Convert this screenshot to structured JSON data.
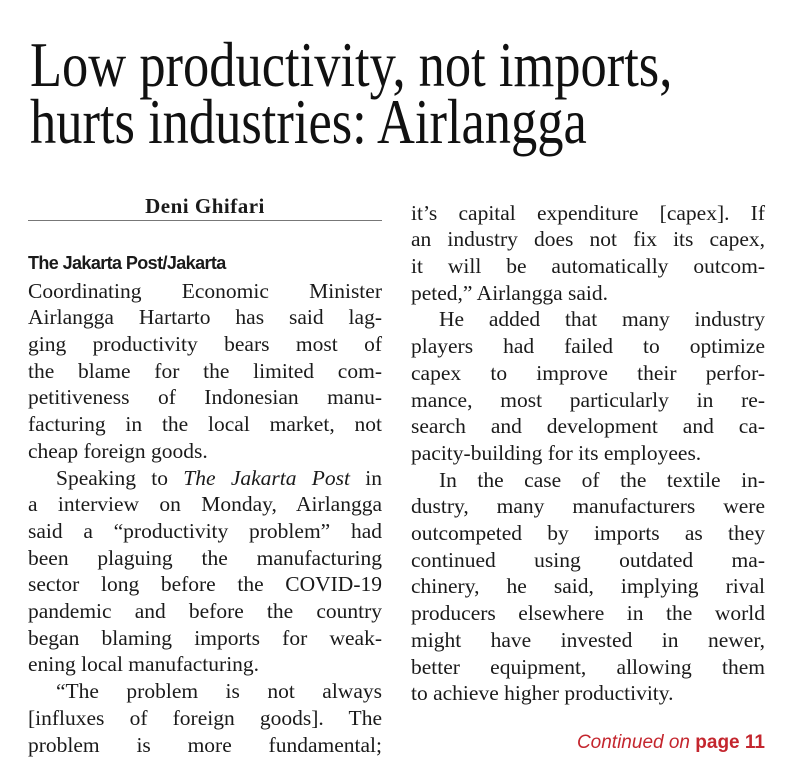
{
  "headline": [
    "Low productivity, not imports,",
    "hurts industries: Airlangga"
  ],
  "byline": "Deni Ghifari",
  "dateline": "The Jakarta Post/Jakarta",
  "columns": [
    {
      "paragraphs": [
        [
          "Coordinating Economic Minister",
          "Airlangga Hartarto has said lag-",
          "ging productivity bears most of",
          "the blame for the limited com-",
          "petitiveness of Indonesian manu-",
          "facturing in the local market, not",
          "cheap foreign goods."
        ],
        [
          [
            "Speaking to ",
            "The Jakarta Post",
            " in"
          ],
          "a interview on Monday, Airlangga",
          "said a “productivity problem” had",
          "been plaguing the manufacturing",
          "sector long before the COVID-19",
          "pandemic and before the country",
          "began blaming imports for weak-",
          "ening local manufacturing."
        ],
        [
          "“The problem is not always",
          "[influxes of foreign goods]. The",
          "problem is more fundamental;"
        ]
      ]
    },
    {
      "paragraphs": [
        [
          "it’s capital expenditure [capex]. If",
          "an industry does not fix its capex,",
          "it will be automatically outcom-",
          "peted,” Airlangga said."
        ],
        [
          "He added that many industry",
          "players had failed to optimize",
          "capex to improve their perfor-",
          "mance, most particularly in re-",
          "search and development and ca-",
          "pacity-building for its employees."
        ],
        [
          "In the case of the textile in-",
          "dustry, many manufacturers were",
          "outcompeted by imports as they",
          "continued using outdated ma-",
          "chinery, he said, implying rival",
          "producers elsewhere in the world",
          "might have invested in newer,",
          "better equipment, allowing them",
          "to achieve higher productivity."
        ]
      ]
    }
  ],
  "continued": {
    "text": "Continued on",
    "page": "page 11"
  }
}
